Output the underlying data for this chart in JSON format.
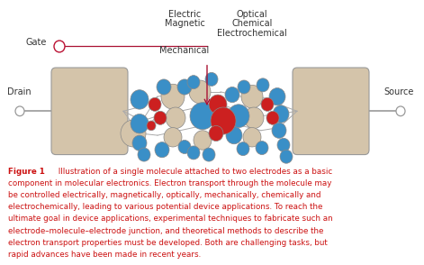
{
  "bg_color": "#ffffff",
  "electrode_color": "#d4c4aa",
  "electrode_outline": "#999999",
  "wire_color": "#999999",
  "blue_atom": "#3a8fc7",
  "red_atom": "#cc2020",
  "tan_atom": "#d4c4aa",
  "bond_color": "#aaaaaa",
  "arrow_color": "#aa1133",
  "label_color": "#333333",
  "gate_circle_outline": "#bb1133",
  "caption_color": "#cc1111",
  "caption_bold_color": "#cc1111",
  "caption_lines": [
    "Illustration of a single molecule attached to two electrodes as a basic",
    "component in molecular electronics. Electron transport through the molecule may",
    "be controlled electrically, magnetically, optically, mechanically, chemically and",
    "electrochemically, leading to various potential device applications. To reach the",
    "ultimate goal in device applications, experimental techniques to fabricate such an",
    "electrode–molecule–electrode junction, and theoretical methods to describe the",
    "electron transport properties must be developed. Both are challenging tasks, but",
    "rapid advances have been made in recent years."
  ]
}
